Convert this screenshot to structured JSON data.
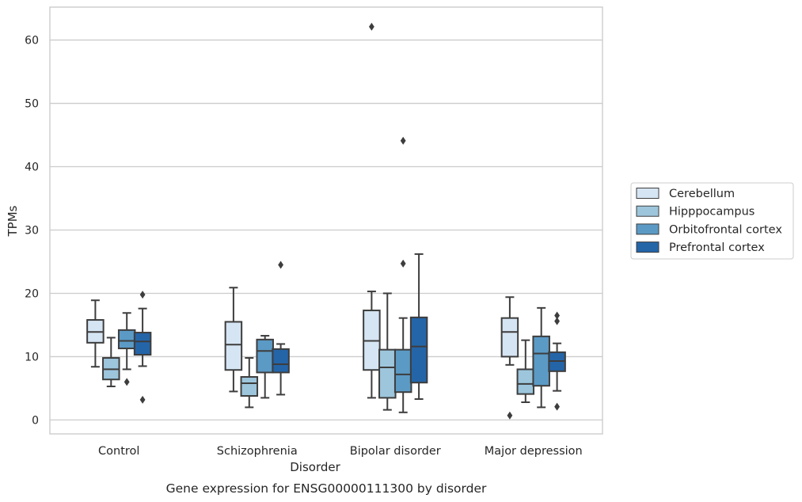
{
  "chart_data": {
    "type": "boxplot",
    "xlabel": "Disorder",
    "ylabel": "TPMs",
    "caption": "Gene expression for ENSG00000111300 by disorder",
    "categories": [
      "Control",
      "Schizophrenia",
      "Bipolar disorder",
      "Major depression"
    ],
    "y_ticks": [
      0,
      10,
      20,
      30,
      40,
      50,
      60
    ],
    "ylim": [
      -2.2,
      65.2
    ],
    "grid": true,
    "legend_position": "right-outside",
    "series": [
      {
        "name": "Cerebellum",
        "color": "#d6e5f3",
        "boxes": [
          {
            "whislo": 8.4,
            "q1": 12.2,
            "med": 13.9,
            "q3": 15.8,
            "whishi": 18.9,
            "fliers": []
          },
          {
            "whislo": 4.5,
            "q1": 7.9,
            "med": 11.9,
            "q3": 15.5,
            "whishi": 20.9,
            "fliers": []
          },
          {
            "whislo": 3.5,
            "q1": 7.9,
            "med": 12.5,
            "q3": 17.3,
            "whishi": 20.3,
            "fliers": [
              62.1
            ]
          },
          {
            "whislo": 8.7,
            "q1": 10.0,
            "med": 13.9,
            "q3": 16.1,
            "whishi": 19.4,
            "fliers": [
              0.7
            ]
          }
        ]
      },
      {
        "name": "Hipppocampus",
        "color": "#9dc6dc",
        "boxes": [
          {
            "whislo": 5.3,
            "q1": 6.4,
            "med": 8.0,
            "q3": 9.8,
            "whishi": 13.0,
            "fliers": []
          },
          {
            "whislo": 2.0,
            "q1": 3.8,
            "med": 5.8,
            "q3": 6.8,
            "whishi": 9.8,
            "fliers": []
          },
          {
            "whislo": 1.6,
            "q1": 3.5,
            "med": 8.3,
            "q3": 11.1,
            "whishi": 20.0,
            "fliers": []
          },
          {
            "whislo": 2.8,
            "q1": 4.1,
            "med": 5.7,
            "q3": 8.0,
            "whishi": 12.6,
            "fliers": []
          }
        ]
      },
      {
        "name": "Orbitofrontal cortex",
        "color": "#5b9ac5",
        "boxes": [
          {
            "whislo": 8.0,
            "q1": 11.3,
            "med": 12.5,
            "q3": 14.2,
            "whishi": 16.9,
            "fliers": [
              6.0
            ]
          },
          {
            "whislo": 3.5,
            "q1": 7.5,
            "med": 10.9,
            "q3": 12.7,
            "whishi": 13.3,
            "fliers": []
          },
          {
            "whislo": 1.2,
            "q1": 4.4,
            "med": 7.2,
            "q3": 11.1,
            "whishi": 16.1,
            "fliers": [
              24.7,
              44.1
            ]
          },
          {
            "whislo": 2.0,
            "q1": 5.4,
            "med": 10.5,
            "q3": 13.2,
            "whishi": 17.7,
            "fliers": []
          }
        ]
      },
      {
        "name": "Prefrontal cortex",
        "color": "#2465a8",
        "boxes": [
          {
            "whislo": 8.5,
            "q1": 10.3,
            "med": 12.4,
            "q3": 13.8,
            "whishi": 17.6,
            "fliers": [
              3.2,
              19.8
            ]
          },
          {
            "whislo": 4.0,
            "q1": 7.5,
            "med": 8.8,
            "q3": 11.2,
            "whishi": 12.0,
            "fliers": [
              24.5
            ]
          },
          {
            "whislo": 3.3,
            "q1": 5.9,
            "med": 11.6,
            "q3": 16.2,
            "whishi": 26.2,
            "fliers": []
          },
          {
            "whislo": 4.6,
            "q1": 7.7,
            "med": 9.3,
            "q3": 10.7,
            "whishi": 12.1,
            "fliers": [
              2.1,
              15.6,
              16.5
            ]
          }
        ]
      }
    ]
  }
}
